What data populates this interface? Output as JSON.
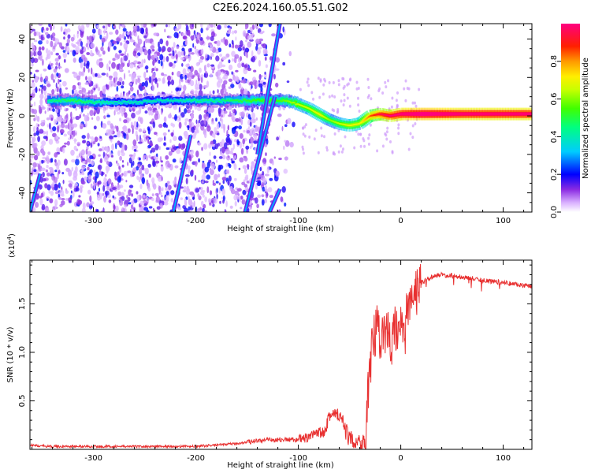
{
  "title": "C2E6.2024.160.05.51.G02",
  "colors": {
    "snr_line": "#e83030",
    "axis": "#000000",
    "background": "#ffffff"
  },
  "chart_data": [
    {
      "type": "heatmap",
      "xlabel": "Height of straight line (km)",
      "ylabel": "Frequency (Hz)",
      "xlim": [
        -362,
        128
      ],
      "ylim": [
        -50,
        48
      ],
      "x_ticks": [
        "-300",
        "-200",
        "-100",
        "0",
        "100"
      ],
      "x_tick_values": [
        -300,
        -200,
        -100,
        0,
        100
      ],
      "y_ticks": [
        "-40",
        "-20",
        "0",
        "20",
        "40"
      ],
      "y_tick_values": [
        -40,
        -20,
        0,
        20,
        40
      ],
      "colorbar": {
        "label": "Normalized spectral amplitude",
        "range": [
          0,
          1
        ],
        "ticks": [
          "0.0",
          "0.2",
          "0.4",
          "0.6",
          "0.8"
        ],
        "tick_values": [
          0,
          0.2,
          0.4,
          0.6,
          0.8
        ],
        "colormap": "rainbow (white - violet - blue - cyan - green - yellow - orange - red - magenta)"
      },
      "ridge": {
        "x": [
          -345,
          -320,
          -300,
          -280,
          -260,
          -240,
          -220,
          -200,
          -180,
          -160,
          -140,
          -120,
          -110,
          -100,
          -90,
          -80,
          -70,
          -60,
          -50,
          -40,
          -30,
          -20,
          -10,
          0,
          20,
          60,
          100,
          128
        ],
        "freq": [
          8,
          8,
          7,
          7,
          7,
          8,
          8,
          8,
          8,
          8,
          8,
          8,
          8,
          6,
          4,
          1,
          -2,
          -4,
          -5,
          -4,
          0,
          1,
          0,
          1,
          1,
          1,
          1,
          1
        ],
        "amplitude": [
          0.35,
          0.4,
          0.35,
          0.3,
          0.3,
          0.3,
          0.3,
          0.35,
          0.35,
          0.4,
          0.45,
          0.45,
          0.5,
          0.55,
          0.55,
          0.6,
          0.5,
          0.55,
          0.6,
          0.6,
          0.75,
          0.85,
          0.9,
          0.95,
          1.0,
          0.95,
          0.95,
          0.95
        ]
      },
      "streaks": [
        {
          "x": [
            -362,
            -352
          ],
          "freq": [
            -50,
            -30
          ]
        },
        {
          "x": [
            -222,
            -205
          ],
          "freq": [
            -50,
            -10
          ]
        },
        {
          "x": [
            -152,
            -123
          ],
          "freq": [
            -50,
            10
          ]
        },
        {
          "x": [
            -140,
            -118
          ],
          "freq": [
            -20,
            48
          ]
        },
        {
          "x": [
            -128,
            -118
          ],
          "freq": [
            -50,
            -38
          ]
        }
      ]
    },
    {
      "type": "line",
      "xlabel": "Height of straight line (km)",
      "ylabel": "SNR (10 * v/v)",
      "y_multiplier": "(x10",
      "y_multiplier_exp": "4",
      "y_multiplier_close": ")",
      "xlim": [
        -362,
        128
      ],
      "ylim": [
        0,
        1.95
      ],
      "x_ticks": [
        "-300",
        "-200",
        "-100",
        "0",
        "100"
      ],
      "x_tick_values": [
        -300,
        -200,
        -100,
        0,
        100
      ],
      "y_ticks": [
        "0.5",
        "1.0",
        "1.5"
      ],
      "y_tick_values": [
        0.5,
        1.0,
        1.5
      ],
      "series": [
        {
          "x": [
            -362,
            -340,
            -300,
            -250,
            -200,
            -160,
            -140,
            -120,
            -100,
            -90,
            -75,
            -70,
            -60,
            -50,
            -40,
            -34,
            -30,
            -25,
            -22,
            -20,
            -15,
            -10,
            -5,
            0,
            10,
            20,
            30,
            40,
            50,
            60,
            80,
            100,
            128
          ],
          "y": [
            0.04,
            0.03,
            0.03,
            0.03,
            0.03,
            0.06,
            0.09,
            0.1,
            0.1,
            0.12,
            0.2,
            0.35,
            0.35,
            0.1,
            0.08,
            0.1,
            1.0,
            1.2,
            1.4,
            1.1,
            1.2,
            1.15,
            1.25,
            1.25,
            1.5,
            1.72,
            1.78,
            1.8,
            1.79,
            1.78,
            1.74,
            1.72,
            1.68
          ]
        }
      ]
    }
  ]
}
